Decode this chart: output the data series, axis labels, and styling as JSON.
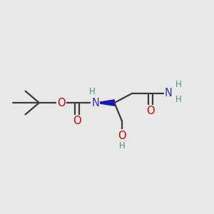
{
  "background_color": "#e8e8e8",
  "bond_color": "#3a3a3a",
  "O_color": "#cc0000",
  "N_color": "#3333bb",
  "N_dark_color": "#1a1aaa",
  "H_color": "#4a8a8a",
  "figsize": [
    3.0,
    3.0
  ],
  "dpi": 100,
  "xlim": [
    0,
    10
  ],
  "ylim": [
    2,
    8
  ]
}
